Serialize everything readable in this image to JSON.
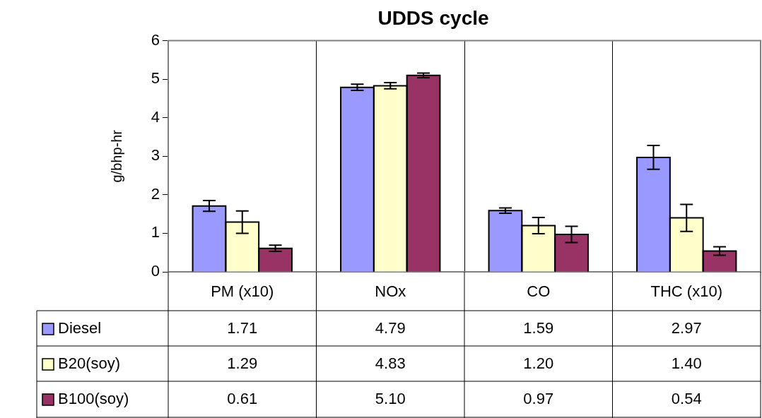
{
  "chart_data": {
    "type": "bar",
    "title": "UDDS cycle",
    "ylabel": "g/bhp-hr",
    "categories": [
      "PM (x10)",
      "NOx",
      "CO",
      "THC (x10)"
    ],
    "series": [
      {
        "name": "Diesel",
        "color": "#9999ff",
        "values": [
          1.71,
          4.79,
          1.59,
          2.97
        ],
        "errors": [
          0.14,
          0.08,
          0.07,
          0.31
        ],
        "value_labels": [
          "1.71",
          "4.79",
          "1.59",
          "2.97"
        ]
      },
      {
        "name": "B20(soy)",
        "color": "#ffffcc",
        "values": [
          1.29,
          4.83,
          1.2,
          1.4
        ],
        "errors": [
          0.29,
          0.08,
          0.21,
          0.35
        ],
        "value_labels": [
          "1.29",
          "4.83",
          "1.20",
          "1.40"
        ]
      },
      {
        "name": "B100(soy)",
        "color": "#993366",
        "values": [
          0.61,
          5.1,
          0.97,
          0.54
        ],
        "errors": [
          0.08,
          0.06,
          0.21,
          0.11
        ],
        "value_labels": [
          "0.61",
          "5.10",
          "0.97",
          "0.54"
        ]
      }
    ],
    "ylim": [
      0,
      6
    ],
    "yticks": [
      0,
      1,
      2,
      3,
      4,
      5,
      6
    ],
    "grid": "x",
    "legend": "bottom"
  }
}
